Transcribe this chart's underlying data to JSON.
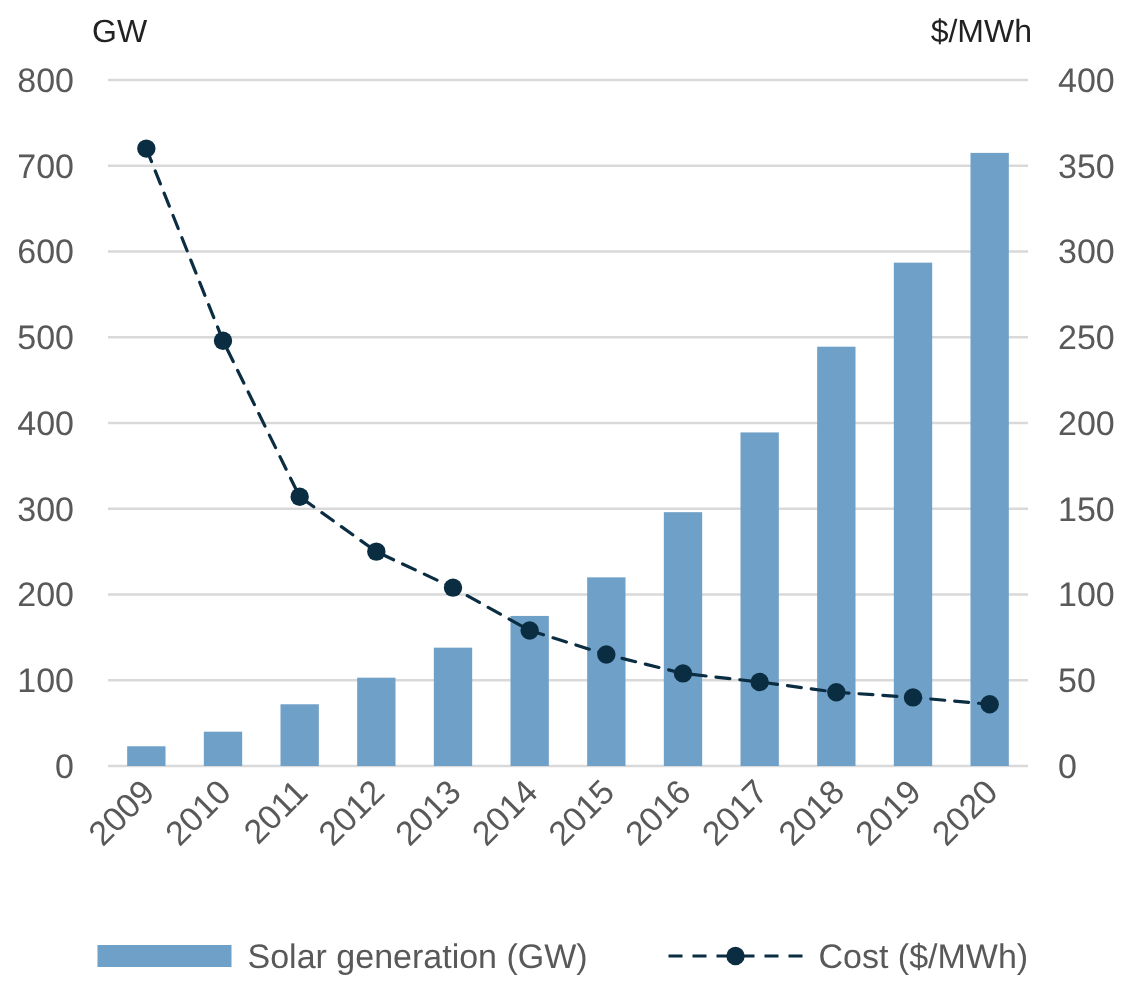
{
  "chart_data": {
    "type": "bar",
    "categories": [
      "2009",
      "2010",
      "2011",
      "2012",
      "2013",
      "2014",
      "2015",
      "2016",
      "2017",
      "2018",
      "2019",
      "2020"
    ],
    "series": [
      {
        "name": "Solar generation (GW)",
        "color": "#6fa0c8",
        "values": [
          23,
          40,
          72,
          103,
          138,
          175,
          220,
          296,
          389,
          489,
          587,
          715
        ]
      },
      {
        "name": "Cost ($/MWh)",
        "type": "line",
        "axis": "y2",
        "color": "#0b2d42",
        "marker": "circle",
        "line_style": "dashed",
        "values": [
          360,
          248,
          157,
          125,
          104,
          79,
          65,
          54,
          49,
          43,
          40,
          36
        ]
      }
    ],
    "ylabel": "GW",
    "y2label": "$/MWh",
    "ylim": [
      0,
      800
    ],
    "yticks": [
      0,
      100,
      200,
      300,
      400,
      500,
      600,
      700,
      800
    ],
    "y2lim": [
      0,
      400
    ],
    "y2ticks": [
      0,
      50,
      100,
      150,
      200,
      250,
      300,
      350,
      400
    ],
    "grid": "y",
    "legend": "bottom"
  }
}
